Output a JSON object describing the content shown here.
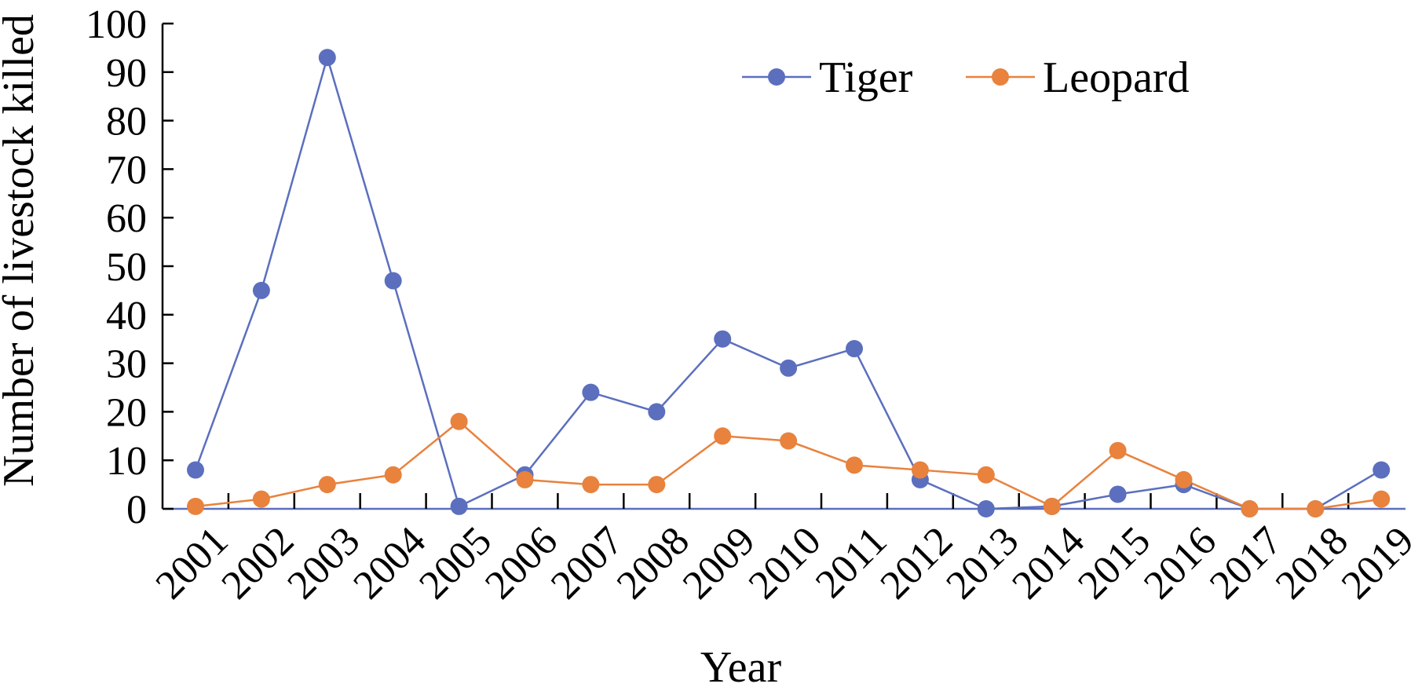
{
  "chart_data": {
    "type": "line",
    "xlabel": "Year",
    "ylabel": "Number of livestock killed",
    "categories": [
      "2001",
      "2002",
      "2003",
      "2004",
      "2005",
      "2006",
      "2007",
      "2008",
      "2009",
      "2010",
      "2011",
      "2012",
      "2013",
      "2014",
      "2015",
      "2016",
      "2017",
      "2018",
      "2019"
    ],
    "ylim": [
      0,
      100
    ],
    "yticks": [
      "0",
      "10",
      "20",
      "30",
      "40",
      "50",
      "60",
      "70",
      "80",
      "90",
      "100"
    ],
    "series": [
      {
        "name": "Tiger",
        "color": "#5B6FBE",
        "values": [
          8,
          45,
          93,
          47,
          0.5,
          7,
          24,
          20,
          35,
          29,
          33,
          6,
          0,
          0.5,
          3,
          5,
          0,
          0,
          8
        ]
      },
      {
        "name": "Leopard",
        "color": "#E8823D",
        "values": [
          0.5,
          2,
          5,
          7,
          18,
          6,
          5,
          5,
          15,
          14,
          9,
          8,
          7,
          0.5,
          12,
          6,
          0,
          0,
          2
        ]
      }
    ],
    "legend_position": "top-center",
    "grid": false
  }
}
